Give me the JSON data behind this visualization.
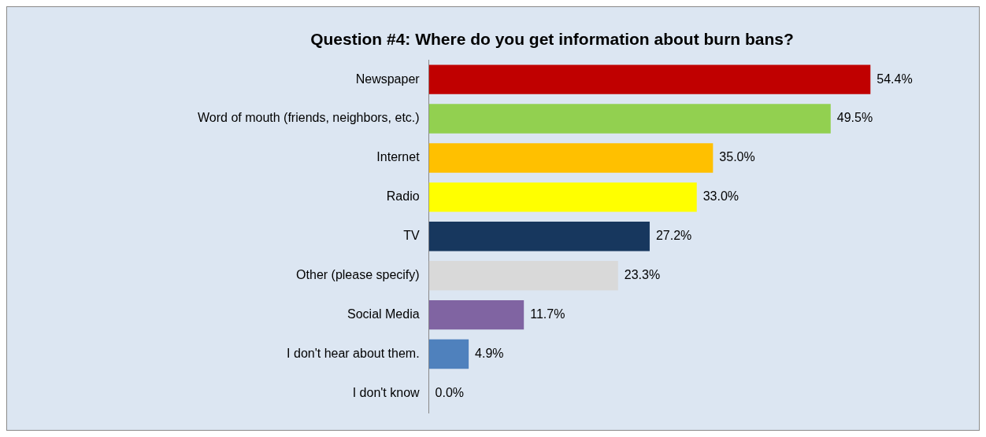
{
  "chart_data": {
    "type": "bar",
    "orientation": "horizontal",
    "title": "Question #4: Where do you get information about burn bans?",
    "categories": [
      "Newspaper",
      "Word of mouth (friends, neighbors, etc.)",
      "Internet",
      "Radio",
      "TV",
      "Other (please specify)",
      "Social Media",
      "I don't hear about them.",
      "I don't know"
    ],
    "values": [
      54.4,
      49.5,
      35.0,
      33.0,
      27.2,
      23.3,
      11.7,
      4.9,
      0.0
    ],
    "colors": [
      "#c00000",
      "#92d050",
      "#ffc000",
      "#ffff00",
      "#17375e",
      "#d9d9d9",
      "#8064a2",
      "#4f81bd",
      "#4f81bd"
    ],
    "value_labels": [
      "54.4%",
      "49.5%",
      "35.0%",
      "33.0%",
      "27.2%",
      "23.3%",
      "11.7%",
      "4.9%",
      "0.0%"
    ],
    "legend": false
  }
}
